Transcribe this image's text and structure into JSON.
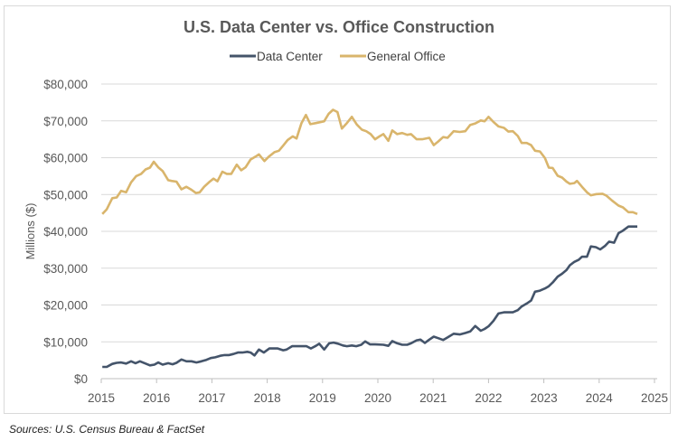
{
  "chart_data": {
    "type": "line",
    "title": "U.S. Data Center vs. Office Construction",
    "xlabel": "",
    "ylabel": "Millions ($)",
    "xlim": [
      2015,
      2025
    ],
    "ylim": [
      0,
      80000
    ],
    "x_ticks": [
      "2015",
      "2016",
      "2017",
      "2018",
      "2019",
      "2020",
      "2021",
      "2022",
      "2023",
      "2024",
      "2025"
    ],
    "y_ticks": [
      "$0",
      "$10,000",
      "$20,000",
      "$30,000",
      "$40,000",
      "$50,000",
      "$60,000",
      "$70,000",
      "$80,000"
    ],
    "grid": "horizontal",
    "legend_position": "top",
    "source": "Sources: U.S. Census Bureau & FactSet",
    "series": [
      {
        "name": "Data Center",
        "color": "#44546a",
        "points": [
          [
            2015.02,
            3200
          ],
          [
            2015.1,
            3200
          ],
          [
            2015.2,
            4000
          ],
          [
            2015.28,
            4300
          ],
          [
            2015.36,
            4400
          ],
          [
            2015.45,
            4100
          ],
          [
            2015.54,
            4700
          ],
          [
            2015.62,
            4200
          ],
          [
            2015.7,
            4700
          ],
          [
            2015.8,
            4100
          ],
          [
            2015.88,
            3600
          ],
          [
            2015.96,
            3800
          ],
          [
            2016.03,
            4400
          ],
          [
            2016.11,
            3800
          ],
          [
            2016.21,
            4200
          ],
          [
            2016.29,
            3900
          ],
          [
            2016.36,
            4300
          ],
          [
            2016.45,
            5200
          ],
          [
            2016.54,
            4700
          ],
          [
            2016.63,
            4700
          ],
          [
            2016.72,
            4400
          ],
          [
            2016.81,
            4700
          ],
          [
            2016.9,
            5100
          ],
          [
            2016.98,
            5600
          ],
          [
            2017.06,
            5800
          ],
          [
            2017.15,
            6200
          ],
          [
            2017.23,
            6400
          ],
          [
            2017.31,
            6400
          ],
          [
            2017.39,
            6700
          ],
          [
            2017.47,
            7100
          ],
          [
            2017.55,
            7100
          ],
          [
            2017.64,
            7300
          ],
          [
            2017.7,
            7100
          ],
          [
            2017.77,
            6300
          ],
          [
            2017.85,
            7900
          ],
          [
            2017.94,
            7100
          ],
          [
            2018.04,
            8200
          ],
          [
            2018.19,
            8200
          ],
          [
            2018.29,
            7700
          ],
          [
            2018.35,
            7900
          ],
          [
            2018.45,
            8800
          ],
          [
            2018.62,
            8800
          ],
          [
            2018.71,
            8800
          ],
          [
            2018.79,
            8200
          ],
          [
            2018.88,
            8900
          ],
          [
            2018.94,
            9500
          ],
          [
            2019.03,
            7900
          ],
          [
            2019.12,
            9600
          ],
          [
            2019.2,
            9800
          ],
          [
            2019.28,
            9500
          ],
          [
            2019.37,
            9000
          ],
          [
            2019.44,
            8800
          ],
          [
            2019.53,
            9000
          ],
          [
            2019.61,
            8800
          ],
          [
            2019.7,
            9200
          ],
          [
            2019.77,
            10100
          ],
          [
            2019.86,
            9300
          ],
          [
            2019.95,
            9300
          ],
          [
            2020.1,
            9200
          ],
          [
            2020.19,
            8900
          ],
          [
            2020.26,
            10200
          ],
          [
            2020.35,
            9600
          ],
          [
            2020.44,
            9200
          ],
          [
            2020.53,
            9200
          ],
          [
            2020.6,
            9600
          ],
          [
            2020.7,
            10400
          ],
          [
            2020.77,
            10600
          ],
          [
            2020.85,
            9700
          ],
          [
            2020.93,
            10600
          ],
          [
            2021.01,
            11400
          ],
          [
            2021.09,
            11000
          ],
          [
            2021.18,
            10500
          ],
          [
            2021.26,
            11200
          ],
          [
            2021.37,
            12200
          ],
          [
            2021.48,
            12000
          ],
          [
            2021.58,
            12400
          ],
          [
            2021.67,
            12800
          ],
          [
            2021.76,
            14300
          ],
          [
            2021.86,
            13000
          ],
          [
            2021.93,
            13500
          ],
          [
            2022.0,
            14200
          ],
          [
            2022.09,
            15700
          ],
          [
            2022.18,
            17700
          ],
          [
            2022.28,
            18000
          ],
          [
            2022.36,
            18000
          ],
          [
            2022.44,
            18000
          ],
          [
            2022.53,
            18600
          ],
          [
            2022.6,
            19600
          ],
          [
            2022.69,
            20400
          ],
          [
            2022.77,
            21200
          ],
          [
            2022.84,
            23600
          ],
          [
            2022.93,
            23900
          ],
          [
            2023.02,
            24500
          ],
          [
            2023.09,
            25100
          ],
          [
            2023.16,
            26100
          ],
          [
            2023.25,
            27700
          ],
          [
            2023.33,
            28500
          ],
          [
            2023.41,
            29500
          ],
          [
            2023.47,
            30800
          ],
          [
            2023.55,
            31700
          ],
          [
            2023.63,
            32300
          ],
          [
            2023.69,
            33100
          ],
          [
            2023.78,
            33100
          ],
          [
            2023.85,
            35900
          ],
          [
            2023.94,
            35700
          ],
          [
            2024.02,
            35100
          ],
          [
            2024.11,
            36100
          ],
          [
            2024.18,
            37200
          ],
          [
            2024.27,
            36900
          ],
          [
            2024.35,
            39500
          ],
          [
            2024.43,
            40200
          ],
          [
            2024.53,
            41300
          ],
          [
            2024.69,
            41300
          ]
        ]
      },
      {
        "name": "General Office",
        "color": "#d9b56c",
        "points": [
          [
            2015.02,
            44700
          ],
          [
            2015.1,
            46000
          ],
          [
            2015.2,
            49000
          ],
          [
            2015.28,
            49200
          ],
          [
            2015.36,
            51000
          ],
          [
            2015.45,
            50600
          ],
          [
            2015.54,
            53300
          ],
          [
            2015.63,
            55000
          ],
          [
            2015.72,
            55600
          ],
          [
            2015.8,
            56800
          ],
          [
            2015.88,
            57300
          ],
          [
            2015.95,
            58900
          ],
          [
            2016.03,
            57400
          ],
          [
            2016.11,
            56400
          ],
          [
            2016.21,
            53900
          ],
          [
            2016.27,
            53700
          ],
          [
            2016.36,
            53500
          ],
          [
            2016.45,
            51400
          ],
          [
            2016.54,
            52100
          ],
          [
            2016.63,
            51300
          ],
          [
            2016.71,
            50400
          ],
          [
            2016.78,
            50600
          ],
          [
            2016.86,
            52100
          ],
          [
            2016.96,
            53500
          ],
          [
            2017.03,
            54300
          ],
          [
            2017.1,
            53600
          ],
          [
            2017.19,
            56200
          ],
          [
            2017.27,
            55600
          ],
          [
            2017.35,
            55600
          ],
          [
            2017.45,
            58100
          ],
          [
            2017.53,
            56600
          ],
          [
            2017.61,
            57400
          ],
          [
            2017.7,
            59500
          ],
          [
            2017.79,
            60300
          ],
          [
            2017.85,
            60900
          ],
          [
            2017.95,
            59100
          ],
          [
            2018.03,
            60300
          ],
          [
            2018.13,
            61500
          ],
          [
            2018.21,
            61900
          ],
          [
            2018.29,
            63300
          ],
          [
            2018.37,
            64800
          ],
          [
            2018.46,
            65800
          ],
          [
            2018.53,
            65200
          ],
          [
            2018.62,
            69400
          ],
          [
            2018.7,
            71600
          ],
          [
            2018.78,
            69100
          ],
          [
            2018.88,
            69400
          ],
          [
            2019.03,
            69900
          ],
          [
            2019.11,
            71900
          ],
          [
            2019.19,
            73000
          ],
          [
            2019.27,
            72400
          ],
          [
            2019.35,
            67900
          ],
          [
            2019.44,
            69400
          ],
          [
            2019.53,
            71100
          ],
          [
            2019.62,
            69000
          ],
          [
            2019.71,
            67600
          ],
          [
            2019.79,
            67200
          ],
          [
            2019.87,
            66400
          ],
          [
            2019.95,
            65000
          ],
          [
            2020.03,
            65800
          ],
          [
            2020.1,
            66400
          ],
          [
            2020.19,
            64600
          ],
          [
            2020.26,
            67400
          ],
          [
            2020.35,
            66400
          ],
          [
            2020.44,
            66700
          ],
          [
            2020.53,
            66200
          ],
          [
            2020.6,
            66400
          ],
          [
            2020.7,
            65000
          ],
          [
            2020.8,
            65000
          ],
          [
            2020.93,
            65400
          ],
          [
            2021.01,
            63400
          ],
          [
            2021.09,
            64400
          ],
          [
            2021.18,
            65600
          ],
          [
            2021.26,
            65400
          ],
          [
            2021.37,
            67200
          ],
          [
            2021.48,
            67000
          ],
          [
            2021.58,
            67200
          ],
          [
            2021.67,
            68900
          ],
          [
            2021.76,
            69300
          ],
          [
            2021.86,
            70100
          ],
          [
            2021.93,
            69900
          ],
          [
            2022.0,
            71100
          ],
          [
            2022.09,
            69700
          ],
          [
            2022.18,
            68500
          ],
          [
            2022.28,
            68100
          ],
          [
            2022.36,
            67100
          ],
          [
            2022.44,
            67200
          ],
          [
            2022.53,
            65900
          ],
          [
            2022.6,
            64000
          ],
          [
            2022.69,
            64000
          ],
          [
            2022.77,
            63400
          ],
          [
            2022.84,
            61900
          ],
          [
            2022.93,
            61700
          ],
          [
            2023.02,
            59900
          ],
          [
            2023.09,
            57300
          ],
          [
            2023.16,
            57200
          ],
          [
            2023.25,
            55100
          ],
          [
            2023.33,
            54600
          ],
          [
            2023.41,
            53500
          ],
          [
            2023.47,
            52900
          ],
          [
            2023.55,
            53100
          ],
          [
            2023.6,
            53700
          ],
          [
            2023.69,
            52100
          ],
          [
            2023.78,
            50600
          ],
          [
            2023.85,
            49800
          ],
          [
            2023.95,
            50100
          ],
          [
            2024.06,
            50200
          ],
          [
            2024.13,
            49700
          ],
          [
            2024.23,
            48400
          ],
          [
            2024.35,
            47000
          ],
          [
            2024.43,
            46500
          ],
          [
            2024.53,
            45200
          ],
          [
            2024.61,
            45200
          ],
          [
            2024.69,
            44700
          ]
        ]
      }
    ]
  }
}
